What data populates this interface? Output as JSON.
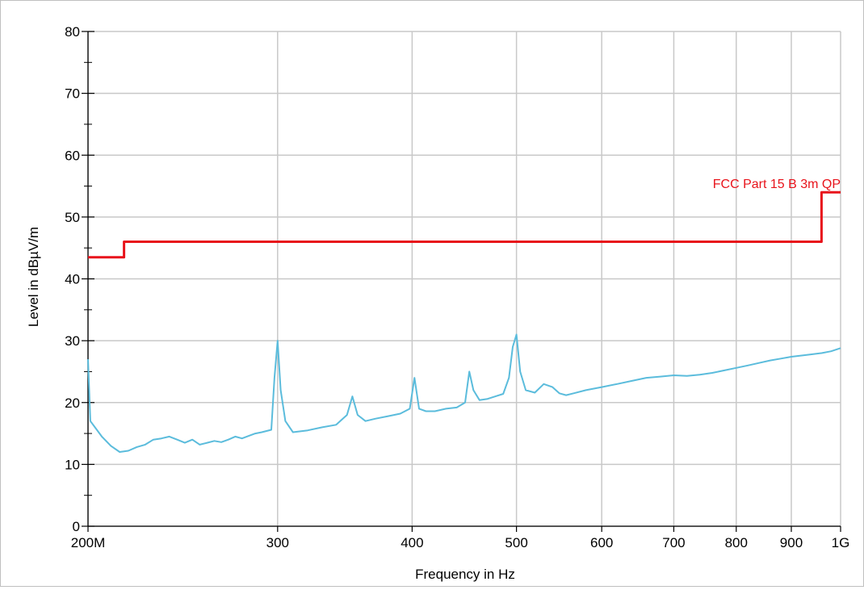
{
  "chart_data": {
    "type": "line",
    "title": "",
    "xlabel": "Frequency in Hz",
    "ylabel": "Level in dBµV/m",
    "x_scale": "log",
    "xlim": [
      200000000,
      1000000000
    ],
    "ylim": [
      0,
      80
    ],
    "grid": true,
    "x_ticks": [
      {
        "value": 200000000,
        "label": "200M"
      },
      {
        "value": 300000000,
        "label": "300"
      },
      {
        "value": 400000000,
        "label": "400"
      },
      {
        "value": 500000000,
        "label": "500"
      },
      {
        "value": 600000000,
        "label": "600"
      },
      {
        "value": 700000000,
        "label": "700"
      },
      {
        "value": 800000000,
        "label": "800"
      },
      {
        "value": 900000000,
        "label": "900"
      },
      {
        "value": 1000000000,
        "label": "1G"
      }
    ],
    "y_ticks": [
      {
        "value": 0,
        "label": "0"
      },
      {
        "value": 10,
        "label": "10"
      },
      {
        "value": 20,
        "label": "20"
      },
      {
        "value": 30,
        "label": "30"
      },
      {
        "value": 40,
        "label": "40"
      },
      {
        "value": 50,
        "label": "50"
      },
      {
        "value": 60,
        "label": "60"
      },
      {
        "value": 70,
        "label": "70"
      },
      {
        "value": 80,
        "label": "80"
      }
    ],
    "series": [
      {
        "name": "",
        "color": "#5bbcdc",
        "x": [
          200000000,
          201000000,
          203000000,
          206000000,
          210000000,
          214000000,
          218000000,
          222000000,
          226000000,
          230000000,
          234000000,
          238000000,
          242000000,
          246000000,
          250000000,
          254000000,
          258000000,
          262000000,
          266000000,
          270000000,
          274000000,
          278000000,
          282000000,
          286000000,
          290000000,
          293000000,
          296000000,
          298000000,
          300000000,
          302000000,
          305000000,
          310000000,
          320000000,
          330000000,
          340000000,
          348000000,
          352000000,
          356000000,
          362000000,
          370000000,
          380000000,
          390000000,
          398000000,
          402000000,
          406000000,
          412000000,
          420000000,
          430000000,
          440000000,
          448000000,
          452000000,
          456000000,
          462000000,
          470000000,
          478000000,
          486000000,
          492000000,
          496000000,
          500000000,
          504000000,
          510000000,
          520000000,
          530000000,
          540000000,
          548000000,
          556000000,
          565000000,
          580000000,
          600000000,
          620000000,
          640000000,
          660000000,
          680000000,
          700000000,
          720000000,
          740000000,
          760000000,
          780000000,
          800000000,
          820000000,
          840000000,
          860000000,
          880000000,
          900000000,
          920000000,
          940000000,
          960000000,
          980000000,
          1000000000
        ],
        "values": [
          27,
          17,
          16,
          14.5,
          13,
          12,
          12.2,
          12.8,
          13.2,
          14,
          14.2,
          14.5,
          14,
          13.5,
          14,
          13.2,
          13.5,
          13.8,
          13.6,
          14,
          14.5,
          14.2,
          14.6,
          15,
          15.2,
          15.4,
          15.6,
          24,
          30,
          22,
          17,
          15.2,
          15.5,
          16,
          16.4,
          18,
          21,
          18,
          17,
          17.4,
          17.8,
          18.2,
          19,
          24,
          19,
          18.6,
          18.6,
          19,
          19.2,
          20,
          25,
          22,
          20.4,
          20.6,
          21,
          21.4,
          24,
          29,
          31,
          25,
          22,
          21.6,
          23,
          22.5,
          21.5,
          21.2,
          21.5,
          22,
          22.5,
          23,
          23.5,
          24,
          24.2,
          24.4,
          24.3,
          24.5,
          24.8,
          25.2,
          25.6,
          26,
          26.4,
          26.8,
          27.1,
          27.4,
          27.6,
          27.8,
          28,
          28.3,
          28.8
        ]
      },
      {
        "name": "FCC Part 15 B 3m QP",
        "color": "#e8131b",
        "x": [
          200000000,
          216000000,
          216000000,
          960000000,
          960000000,
          1000000000
        ],
        "values": [
          43.5,
          43.5,
          46,
          46,
          54,
          54
        ]
      }
    ],
    "annotations": [
      {
        "text": "FCC Part 15 B 3m QP",
        "x": 1000000000,
        "y": 54,
        "anchor": "end",
        "color": "#e8131b"
      }
    ]
  }
}
